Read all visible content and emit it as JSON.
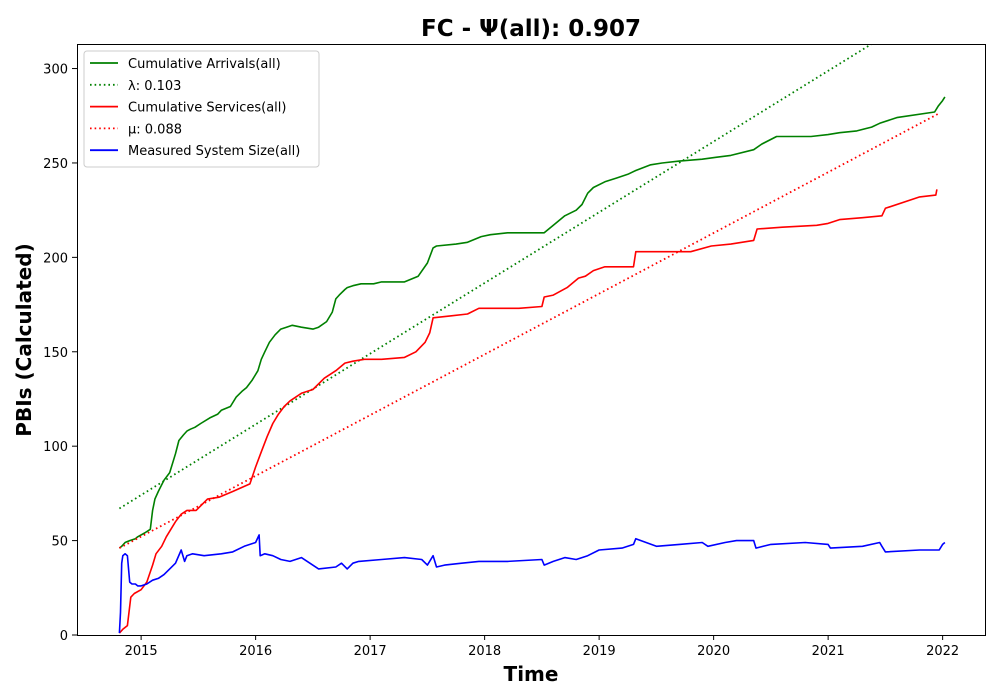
{
  "chart_data": {
    "type": "line",
    "title": "FC -  Ψ(all): 0.907",
    "xlabel": "Time",
    "ylabel": "PBIs (Calculated)",
    "xlim": [
      2014.44,
      2022.37
    ],
    "ylim": [
      0,
      313
    ],
    "x_ticks": [
      2015,
      2016,
      2017,
      2018,
      2019,
      2020,
      2021,
      2022
    ],
    "x_tick_labels": [
      "2015",
      "2016",
      "2017",
      "2018",
      "2019",
      "2020",
      "2021",
      "2022"
    ],
    "y_ticks": [
      0,
      50,
      100,
      150,
      200,
      250,
      300
    ],
    "y_tick_labels": [
      "0",
      "50",
      "100",
      "150",
      "200",
      "250",
      "300"
    ],
    "grid": false,
    "legend_position": "top-left",
    "series": [
      {
        "name": "Cumulative Arrivals(all)",
        "legend_label": "Cumulative Arrivals(all)",
        "color": "#008000",
        "style": "solid",
        "x": [
          2014.81,
          2014.83,
          2014.86,
          2014.9,
          2014.95,
          2014.97,
          2015.03,
          2015.08,
          2015.1,
          2015.12,
          2015.15,
          2015.2,
          2015.25,
          2015.3,
          2015.33,
          2015.37,
          2015.4,
          2015.43,
          2015.47,
          2015.52,
          2015.6,
          2015.67,
          2015.7,
          2015.78,
          2015.83,
          2015.88,
          2015.92,
          2015.97,
          2016.02,
          2016.05,
          2016.08,
          2016.12,
          2016.17,
          2016.22,
          2016.27,
          2016.32,
          2016.4,
          2016.5,
          2016.55,
          2016.62,
          2016.67,
          2016.7,
          2016.73,
          2016.78,
          2016.8,
          2016.85,
          2016.92,
          2017.03,
          2017.1,
          2017.3,
          2017.42,
          2017.5,
          2017.55,
          2017.58,
          2017.75,
          2017.85,
          2017.97,
          2018.05,
          2018.2,
          2018.52,
          2018.62,
          2018.7,
          2018.8,
          2018.85,
          2018.9,
          2018.95,
          2019.05,
          2019.15,
          2019.25,
          2019.32,
          2019.45,
          2019.55,
          2019.7,
          2019.9,
          2020.02,
          2020.15,
          2020.35,
          2020.42,
          2020.55,
          2020.85,
          2021.0,
          2021.1,
          2021.25,
          2021.38,
          2021.45,
          2021.6,
          2021.93,
          2021.96,
          2022.0,
          2022.02
        ],
        "y": [
          46,
          47,
          49,
          50,
          51,
          52,
          54,
          56,
          66,
          72,
          76,
          82,
          86,
          96,
          103,
          106,
          108,
          109,
          110,
          112,
          115,
          117,
          119,
          121,
          126,
          129,
          131,
          135,
          140,
          146,
          150,
          155,
          159,
          162,
          163,
          164,
          163,
          162,
          163,
          166,
          171,
          178,
          180,
          183,
          184,
          185,
          186,
          186,
          187,
          187,
          190,
          197,
          205,
          206,
          207,
          208,
          211,
          212,
          213,
          213,
          218,
          222,
          225,
          228,
          234,
          237,
          240,
          242,
          244,
          246,
          249,
          250,
          251,
          252,
          253,
          254,
          257,
          260,
          264,
          264,
          265,
          266,
          267,
          269,
          271,
          274,
          277,
          280,
          283,
          285
        ]
      },
      {
        "name": "lambda",
        "legend_label": "λ: 0.103",
        "color": "#008000",
        "style": "dotted",
        "x": [
          2014.81,
          2021.38
        ],
        "y": [
          67,
          313
        ]
      },
      {
        "name": "Cumulative Services(all)",
        "legend_label": "Cumulative Services(all)",
        "color": "#ff0000",
        "style": "solid",
        "x": [
          2014.81,
          2014.84,
          2014.88,
          2014.91,
          2014.94,
          2015.0,
          2015.05,
          2015.1,
          2015.13,
          2015.18,
          2015.22,
          2015.3,
          2015.35,
          2015.4,
          2015.48,
          2015.58,
          2015.68,
          2015.8,
          2015.95,
          2016.0,
          2016.05,
          2016.1,
          2016.15,
          2016.2,
          2016.25,
          2016.3,
          2016.4,
          2016.5,
          2016.6,
          2016.7,
          2016.78,
          2016.85,
          2016.95,
          2017.1,
          2017.3,
          2017.4,
          2017.48,
          2017.52,
          2017.55,
          2017.7,
          2017.85,
          2017.95,
          2018.1,
          2018.3,
          2018.5,
          2018.52,
          2018.6,
          2018.72,
          2018.82,
          2018.88,
          2018.95,
          2019.05,
          2019.3,
          2019.32,
          2019.55,
          2019.8,
          2019.98,
          2020.15,
          2020.35,
          2020.38,
          2020.6,
          2020.9,
          2021.0,
          2021.1,
          2021.3,
          2021.47,
          2021.5,
          2021.8,
          2021.94,
          2021.95
        ],
        "y": [
          1,
          3,
          5,
          20,
          22,
          24,
          28,
          37,
          43,
          47,
          52,
          60,
          64,
          66,
          66,
          72,
          73,
          76,
          80,
          89,
          97,
          105,
          112,
          117,
          121,
          124,
          128,
          130,
          136,
          140,
          144,
          145,
          146,
          146,
          147,
          150,
          155,
          160,
          168,
          169,
          170,
          173,
          173,
          173,
          174,
          179,
          180,
          184,
          189,
          190,
          193,
          195,
          195,
          203,
          203,
          203,
          206,
          207,
          209,
          215,
          216,
          217,
          218,
          220,
          221,
          222,
          226,
          232,
          233,
          236
        ]
      },
      {
        "name": "mu",
        "legend_label": "μ: 0.088",
        "color": "#ff0000",
        "style": "dotted",
        "x": [
          2014.81,
          2021.96
        ],
        "y": [
          46,
          276
        ]
      },
      {
        "name": "Measured System Size(all)",
        "legend_label": "Measured System Size(all)",
        "color": "#0000ff",
        "style": "solid",
        "x": [
          2014.81,
          2014.82,
          2014.83,
          2014.84,
          2014.86,
          2014.88,
          2014.9,
          2014.92,
          2014.95,
          2014.97,
          2015.0,
          2015.05,
          2015.1,
          2015.15,
          2015.2,
          2015.25,
          2015.3,
          2015.35,
          2015.38,
          2015.4,
          2015.45,
          2015.55,
          2015.7,
          2015.8,
          2015.9,
          2016.0,
          2016.03,
          2016.04,
          2016.08,
          2016.15,
          2016.22,
          2016.3,
          2016.4,
          2016.55,
          2016.7,
          2016.75,
          2016.8,
          2016.85,
          2016.9,
          2017.1,
          2017.3,
          2017.45,
          2017.5,
          2017.55,
          2017.58,
          2017.65,
          2017.8,
          2017.95,
          2018.2,
          2018.5,
          2018.52,
          2018.6,
          2018.7,
          2018.8,
          2018.9,
          2019.0,
          2019.2,
          2019.3,
          2019.32,
          2019.5,
          2019.7,
          2019.9,
          2019.95,
          2020.1,
          2020.2,
          2020.35,
          2020.37,
          2020.5,
          2020.8,
          2021.0,
          2021.02,
          2021.3,
          2021.45,
          2021.47,
          2021.5,
          2021.8,
          2021.95,
          2021.97,
          2022.0,
          2022.02
        ],
        "y": [
          1,
          12,
          38,
          42,
          43,
          42,
          28,
          27,
          27,
          26,
          26,
          27,
          29,
          30,
          32,
          35,
          38,
          45,
          39,
          42,
          43,
          42,
          43,
          44,
          47,
          49,
          53,
          42,
          43,
          42,
          40,
          39,
          41,
          35,
          36,
          38,
          35,
          38,
          39,
          40,
          41,
          40,
          37,
          42,
          36,
          37,
          38,
          39,
          39,
          40,
          37,
          39,
          41,
          40,
          42,
          45,
          46,
          48,
          51,
          47,
          48,
          49,
          47,
          49,
          50,
          50,
          46,
          48,
          49,
          48,
          46,
          47,
          49,
          47,
          44,
          45,
          45,
          45,
          48,
          49
        ]
      }
    ]
  }
}
